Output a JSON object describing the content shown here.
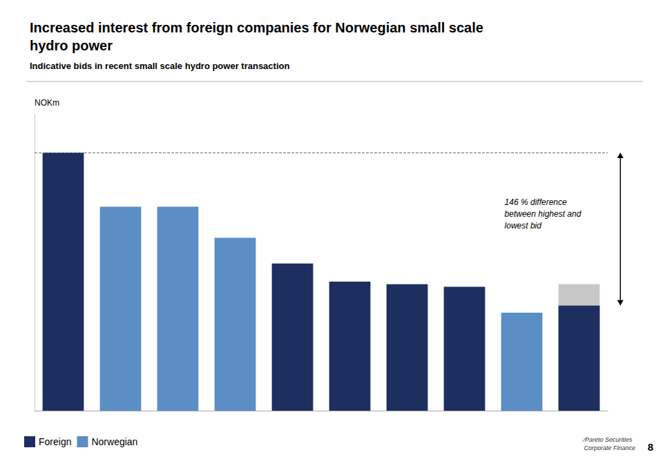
{
  "chart_data": {
    "type": "bar",
    "title": "Increased interest from foreign companies for Norwegian small scale\nhydro power",
    "subtitle": "Indicative bids in recent small scale hydro power transaction",
    "ylabel": "NOKm",
    "categories": [
      null,
      null,
      null,
      null,
      null,
      null,
      null,
      null,
      null,
      null
    ],
    "series": [
      {
        "name": "Foreign",
        "color": "#1c2f5e",
        "values": [
          100,
          null,
          null,
          null,
          57,
          50,
          49,
          48,
          null,
          40.7
        ]
      },
      {
        "name": "Norwegian",
        "color": "#5b8ec4",
        "values": [
          null,
          79,
          79,
          67,
          null,
          null,
          null,
          null,
          38,
          null
        ]
      },
      {
        "color": "#c8c8c8",
        "values": [
          null,
          null,
          null,
          null,
          null,
          null,
          null,
          null,
          null,
          49
        ]
      }
    ],
    "reference_line": 100,
    "annotations": [
      {
        "text": "146 % difference\nbetween highest and\nlowest bid",
        "arrow": [
          100,
          40.7
        ]
      },
      {
        "text": "8"
      },
      {
        "text": "∕Pareto Securities\nCorporate Finance"
      }
    ],
    "ylim": [
      0,
      115
    ],
    "grid": false,
    "legend": "lower left",
    "tick_labels": false
  }
}
